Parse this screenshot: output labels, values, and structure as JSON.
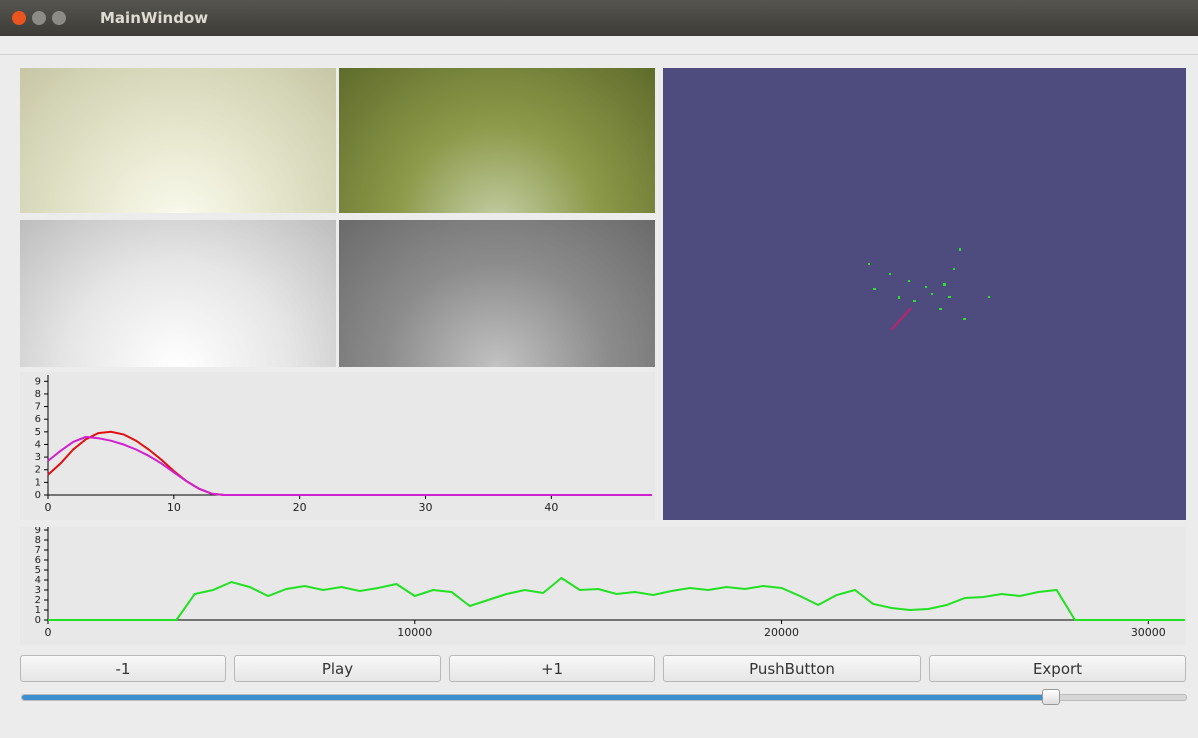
{
  "window": {
    "title": "MainWindow"
  },
  "chart_data": [
    {
      "type": "line",
      "x": [
        0,
        1,
        2,
        3,
        4,
        5,
        6,
        7,
        8,
        9,
        10,
        11,
        12,
        13,
        14,
        15,
        16,
        17,
        18,
        19,
        20,
        21,
        22,
        23,
        24,
        25,
        26,
        27,
        28,
        29,
        30,
        31,
        32,
        33,
        34,
        35,
        36,
        37,
        38,
        39,
        40,
        41,
        42,
        43,
        44,
        45,
        46,
        47,
        48
      ],
      "series": [
        {
          "color": "#e01010",
          "values": [
            1.6,
            2.5,
            3.6,
            4.4,
            4.9,
            5.0,
            4.8,
            4.3,
            3.6,
            2.8,
            1.9,
            1.1,
            0.5,
            0.1,
            0,
            0,
            0,
            0,
            0,
            0,
            0,
            0,
            0,
            0,
            0,
            0,
            0,
            0,
            0,
            0,
            0,
            0,
            0,
            0,
            0,
            0,
            0,
            0,
            0,
            0,
            0,
            0,
            0,
            0,
            0,
            0,
            0,
            0,
            0
          ]
        },
        {
          "color": "#d020d0",
          "values": [
            2.7,
            3.5,
            4.2,
            4.6,
            4.5,
            4.3,
            4.0,
            3.6,
            3.1,
            2.5,
            1.8,
            1.1,
            0.5,
            0.1,
            0,
            0,
            0,
            0,
            0,
            0,
            0,
            0,
            0,
            0,
            0,
            0,
            0,
            0,
            0,
            0,
            0,
            0,
            0,
            0,
            0,
            0,
            0,
            0,
            0,
            0,
            0,
            0,
            0,
            0,
            0,
            0,
            0,
            0,
            0
          ]
        }
      ],
      "xlim": [
        0,
        48
      ],
      "xticks": [
        0,
        10,
        20,
        30,
        40
      ],
      "ylim": [
        0,
        9.5
      ],
      "yticks": [
        0,
        1,
        2,
        3,
        4,
        5,
        6,
        7,
        8,
        9
      ]
    },
    {
      "type": "line",
      "x": [
        0,
        500,
        1000,
        1500,
        2000,
        2500,
        3000,
        3500,
        4000,
        4500,
        5000,
        5500,
        6000,
        6500,
        7000,
        7500,
        8000,
        8500,
        9000,
        9500,
        10000,
        10500,
        11000,
        11500,
        12000,
        12500,
        13000,
        13500,
        14000,
        14500,
        15000,
        15500,
        16000,
        16500,
        17000,
        17500,
        18000,
        18500,
        19000,
        19500,
        20000,
        20500,
        21000,
        21500,
        22000,
        22500,
        23000,
        23500,
        24000,
        24500,
        25000,
        25500,
        26000,
        26500,
        27000,
        27500,
        28000,
        28500,
        29000,
        29500,
        30000,
        30500,
        31000
      ],
      "series": [
        {
          "color": "#22e022",
          "values": [
            0,
            0,
            0,
            0,
            0,
            0,
            0,
            0,
            2.6,
            3.0,
            3.8,
            3.3,
            2.4,
            3.1,
            3.4,
            3.0,
            3.3,
            2.9,
            3.2,
            3.6,
            2.4,
            3.0,
            2.8,
            1.4,
            2.0,
            2.6,
            3.0,
            2.7,
            4.2,
            3.0,
            3.1,
            2.6,
            2.8,
            2.5,
            2.9,
            3.2,
            3.0,
            3.3,
            3.1,
            3.4,
            3.2,
            2.4,
            1.5,
            2.5,
            3.0,
            1.6,
            1.2,
            1.0,
            1.1,
            1.5,
            2.2,
            2.3,
            2.6,
            2.4,
            2.8,
            3.0,
            0,
            0,
            0,
            0,
            0,
            0,
            0
          ]
        }
      ],
      "xlim": [
        0,
        31000
      ],
      "xticks": [
        0,
        10000,
        20000,
        30000
      ],
      "ylim": [
        0,
        9.3
      ],
      "yticks": [
        0,
        1,
        2,
        3,
        4,
        5,
        6,
        7,
        8,
        9
      ]
    }
  ],
  "buttons": [
    "-1",
    "Play",
    "+1",
    "PushButton",
    "Export"
  ]
}
